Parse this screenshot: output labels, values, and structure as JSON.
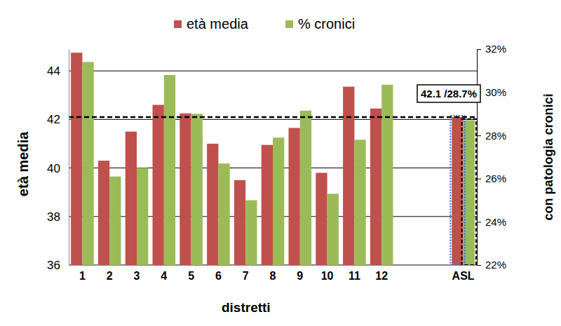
{
  "chart_data": {
    "type": "bar",
    "categories": [
      "1",
      "2",
      "3",
      "4",
      "5",
      "6",
      "7",
      "8",
      "9",
      "10",
      "11",
      "12",
      null,
      null,
      "ASL"
    ],
    "series": [
      {
        "name": "età media",
        "color": "#c0504d",
        "values": [
          44.75,
          40.3,
          41.5,
          42.6,
          42.25,
          41.0,
          39.5,
          40.95,
          41.65,
          39.8,
          43.35,
          42.45,
          null,
          null,
          42.1
        ]
      },
      {
        "name": "% cronici",
        "color": "#9bbb59",
        "axis": "y2",
        "values": [
          31.4,
          26.1,
          26.5,
          30.8,
          29.0,
          26.7,
          25.0,
          27.9,
          29.15,
          25.3,
          27.8,
          30.35,
          null,
          null,
          28.7
        ]
      }
    ],
    "x_label": "distretti",
    "y_label": "età media",
    "y2_label": "con patologia cronici",
    "ylim": [
      36,
      44.9
    ],
    "yticks": [
      36,
      38,
      40,
      42,
      44
    ],
    "y2lim": [
      22,
      32
    ],
    "y2ticks": [
      {
        "value": 22,
        "label": "22%"
      },
      {
        "value": 24,
        "label": "24%"
      },
      {
        "value": 26,
        "label": "26%"
      },
      {
        "value": 28,
        "label": "28%"
      },
      {
        "value": 30,
        "label": "30%"
      },
      {
        "value": 32,
        "label": "32%"
      }
    ],
    "grid": true,
    "legend": "top",
    "annotation": "42.1 /28.7%"
  }
}
